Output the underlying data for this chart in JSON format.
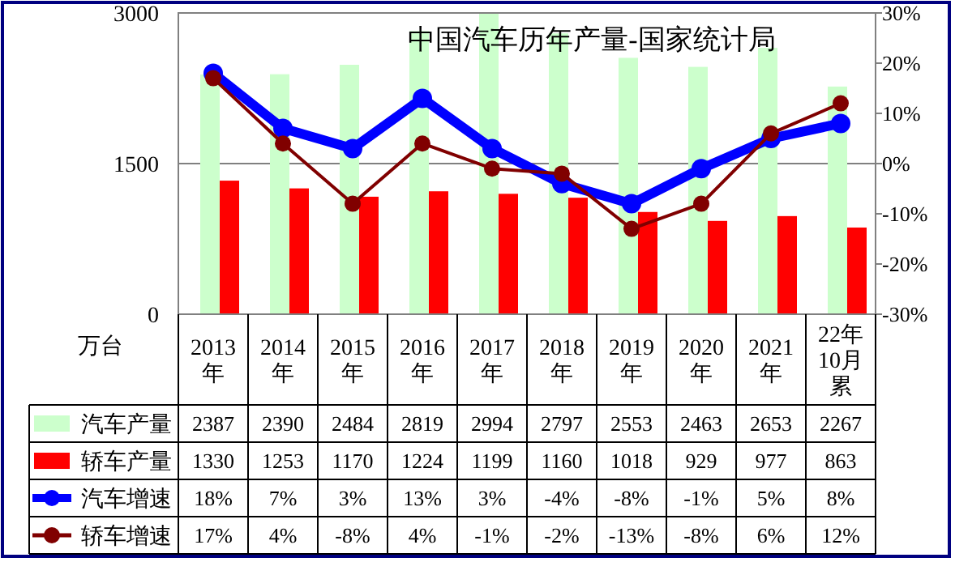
{
  "chart_data": {
    "type": "bar",
    "title": "中国汽车历年产量-国家统计局",
    "ylabel": "万台",
    "categories": [
      "2013年",
      "2014年",
      "2015年",
      "2016年",
      "2017年",
      "2018年",
      "2019年",
      "2020年",
      "2021年",
      "22年10月累"
    ],
    "series": [
      {
        "name": "汽车产量",
        "color": "#ccffcc",
        "values": [
          2387,
          2390,
          2484,
          2819,
          2994,
          2797,
          2553,
          2463,
          2653,
          2267
        ]
      },
      {
        "name": "轿车产量",
        "color": "#ff0000",
        "values": [
          1330,
          1253,
          1170,
          1224,
          1199,
          1160,
          1018,
          929,
          977,
          863
        ]
      },
      {
        "name": "汽车增速",
        "type": "line",
        "axis": "y2",
        "color": "#0000ff",
        "marker": "circle",
        "values": [
          18,
          7,
          3,
          13,
          3,
          -4,
          -8,
          -1,
          5,
          8
        ],
        "value_labels": [
          "18%",
          "7%",
          "3%",
          "13%",
          "3%",
          "-4%",
          "-8%",
          "-1%",
          "5%",
          "8%"
        ]
      },
      {
        "name": "轿车增速",
        "type": "line",
        "axis": "y2",
        "color": "#800000",
        "marker": "circle",
        "values": [
          17,
          4,
          -8,
          4,
          -1,
          -2,
          -13,
          -8,
          6,
          12
        ],
        "value_labels": [
          "17%",
          "4%",
          "-8%",
          "4%",
          "-1%",
          "-2%",
          "-13%",
          "-8%",
          "6%",
          "12%"
        ]
      }
    ],
    "ylim": [
      0,
      3000
    ],
    "yticks": [
      0,
      1500,
      3000
    ],
    "y2lim": [
      -30,
      30
    ],
    "y2ticks": [
      {
        "value": 30,
        "label": "30%"
      },
      {
        "value": 20,
        "label": "20%"
      },
      {
        "value": 10,
        "label": "10%"
      },
      {
        "value": 0,
        "label": "0%"
      },
      {
        "value": -10,
        "label": "-10%"
      },
      {
        "value": -20,
        "label": "-20%"
      },
      {
        "value": -30,
        "label": "-30%"
      }
    ],
    "grid": "y",
    "legend": "bottom",
    "data_labels": true
  }
}
